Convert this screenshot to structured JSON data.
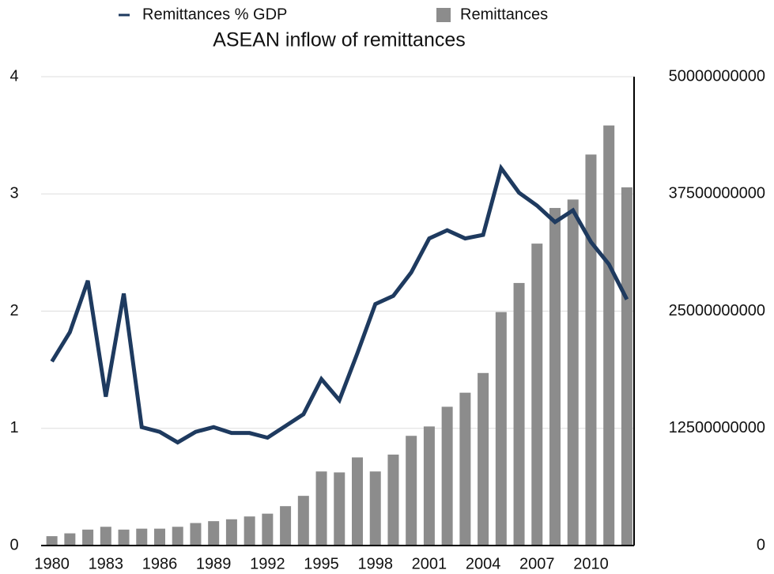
{
  "chart_data": {
    "type": "bar-line",
    "title": "ASEAN inflow of remittances",
    "x": [
      1980,
      1981,
      1982,
      1983,
      1984,
      1985,
      1986,
      1987,
      1988,
      1989,
      1990,
      1991,
      1992,
      1993,
      1994,
      1995,
      1996,
      1997,
      1998,
      1999,
      2000,
      2001,
      2002,
      2003,
      2004,
      2005,
      2006,
      2007,
      2008,
      2009,
      2010,
      2011,
      2012
    ],
    "xlim": [
      1979.4,
      2012.4
    ],
    "xticks": [
      1980,
      1983,
      1986,
      1989,
      1992,
      1995,
      1998,
      2001,
      2004,
      2007,
      2010
    ],
    "ylim": [
      0,
      4
    ],
    "yticks": [
      0,
      1,
      2,
      3,
      4
    ],
    "y2lim": [
      0,
      50000000000
    ],
    "y2ticks": [
      0,
      12500000000,
      25000000000,
      37500000000,
      50000000000
    ],
    "grid": true,
    "series": [
      {
        "name": "Remittances % GDP",
        "type": "line",
        "color": "#1e3a5f",
        "axis": "y",
        "values": [
          1.57,
          1.82,
          2.26,
          1.27,
          2.15,
          1.01,
          0.97,
          0.88,
          0.97,
          1.01,
          0.96,
          0.96,
          0.92,
          1.02,
          1.12,
          1.42,
          1.24,
          1.64,
          2.06,
          2.13,
          2.33,
          2.62,
          2.69,
          2.62,
          2.65,
          3.22,
          3.01,
          2.9,
          2.76,
          2.86,
          2.59,
          2.4,
          2.1
        ]
      },
      {
        "name": "Remittances",
        "type": "bar",
        "color": "#8c8c8c",
        "axis": "y2",
        "values": [
          1000000000,
          1300000000,
          1700000000,
          2000000000,
          1700000000,
          1800000000,
          1800000000,
          2000000000,
          2400000000,
          2600000000,
          2800000000,
          3100000000,
          3400000000,
          4200000000,
          5300000000,
          7900000000,
          7800000000,
          9400000000,
          7900000000,
          9700000000,
          11700000000,
          12700000000,
          14800000000,
          16300000000,
          18400000000,
          24900000000,
          28000000000,
          32200000000,
          36000000000,
          36900000000,
          41700000000,
          44800000000,
          38200000000
        ]
      }
    ]
  }
}
